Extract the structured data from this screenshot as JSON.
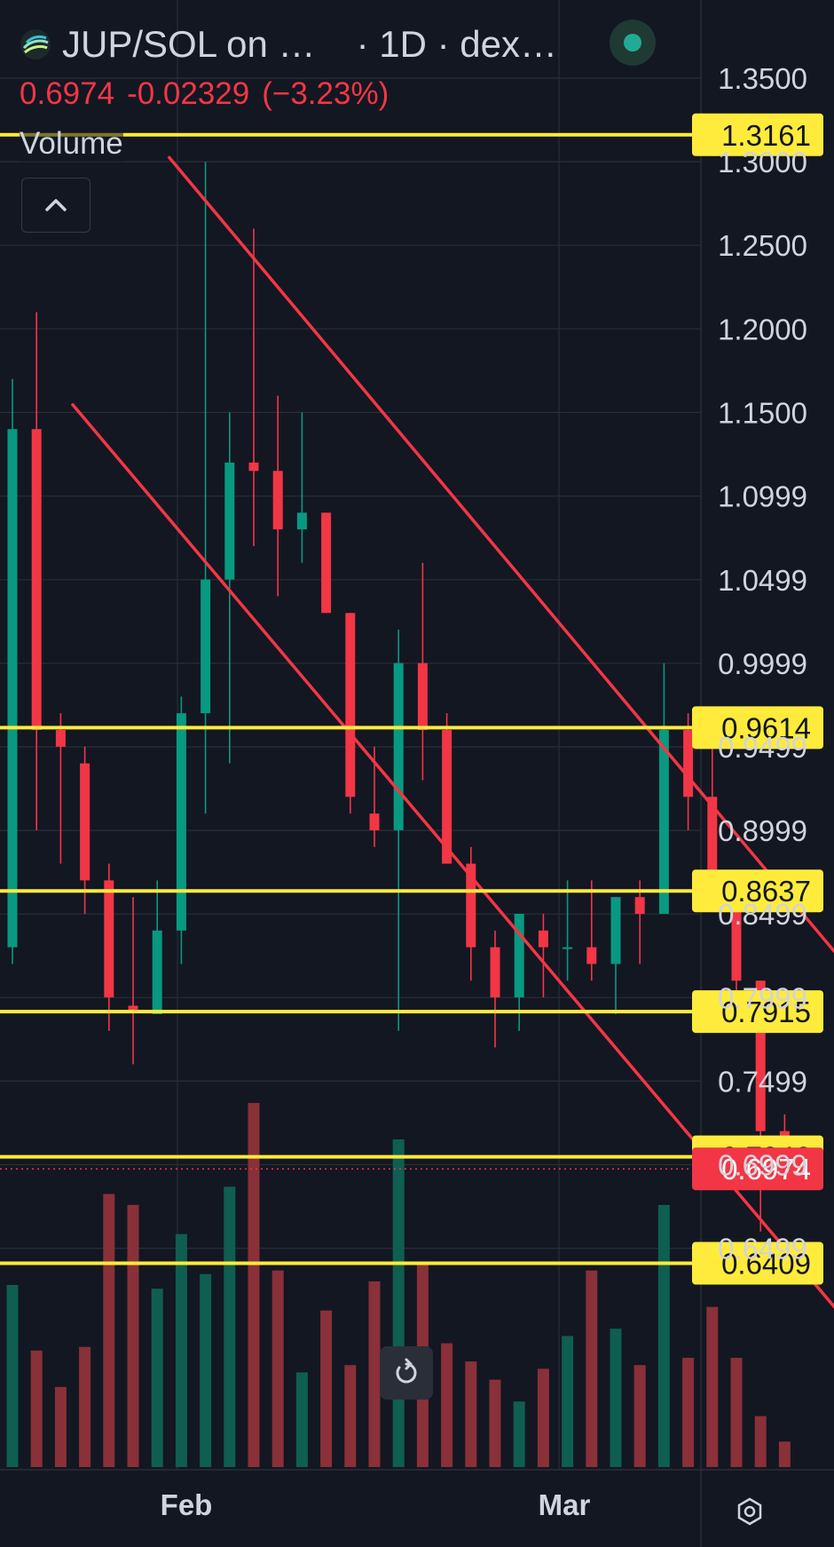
{
  "header": {
    "symbol": "JUP/SOL on …",
    "interval_exchange": "· 1D · dex…",
    "last_price": "0.6974",
    "change": "-0.02329",
    "change_pct": "(−3.23%)",
    "volume_label": "Volume"
  },
  "icons": {
    "logo": "jupiter-logo-icon",
    "live": "market-live-dot-icon",
    "collapse": "chevron-up-icon",
    "reset": "reset-chart-icon",
    "watermark": "watermark-logo-icon"
  },
  "colors": {
    "background": "#131722",
    "up": "#089981",
    "down": "#f23645",
    "hline": "#ffeb3b",
    "trendline": "#f23645",
    "axis_text": "#d1d4dc",
    "grid": "#2a2e39"
  },
  "chart_data": {
    "type": "candlestick",
    "x_ticks": [
      "Feb",
      "Mar"
    ],
    "y_ticks": [
      "1.3500",
      "1.3000",
      "1.2500",
      "1.2000",
      "1.1500",
      "1.0999",
      "1.0499",
      "0.9999",
      "0.9499",
      "0.8999",
      "0.8499",
      "0.7999",
      "0.7499",
      "0.6999",
      "0.6499"
    ],
    "ylim": [
      0.585,
      1.395
    ],
    "horizontal_levels": [
      {
        "label": "1.3161",
        "value": 1.3161
      },
      {
        "label": "0.9614",
        "value": 0.9614
      },
      {
        "label": "0.8637",
        "value": 0.8637
      },
      {
        "label": "0.7915",
        "value": 0.7915
      },
      {
        "label": "0.7046",
        "value": 0.7046
      },
      {
        "label": "0.6409",
        "value": 0.6409
      }
    ],
    "current_price": {
      "label": "0.6974",
      "value": 0.6974
    },
    "trendlines": [
      {
        "p1": {
          "bar": 6.5,
          "price": 1.3025
        },
        "p2": {
          "bar": 38.5,
          "price": 0.7509
        }
      },
      {
        "p1": {
          "bar": 2.5,
          "price": 1.1546
        },
        "p2": {
          "bar": 35.5,
          "price": 0.5901
        }
      }
    ],
    "candles": [
      {
        "o": 0.83,
        "h": 1.17,
        "l": 0.82,
        "c": 1.14
      },
      {
        "o": 1.14,
        "h": 1.21,
        "l": 0.9,
        "c": 0.96
      },
      {
        "o": 0.96,
        "h": 0.97,
        "l": 0.88,
        "c": 0.95
      },
      {
        "o": 0.94,
        "h": 0.95,
        "l": 0.85,
        "c": 0.87
      },
      {
        "o": 0.87,
        "h": 0.88,
        "l": 0.78,
        "c": 0.8
      },
      {
        "o": 0.795,
        "h": 0.86,
        "l": 0.76,
        "c": 0.792
      },
      {
        "o": 0.79,
        "h": 0.87,
        "l": 0.79,
        "c": 0.84
      },
      {
        "o": 0.84,
        "h": 0.98,
        "l": 0.82,
        "c": 0.97
      },
      {
        "o": 0.97,
        "h": 1.3,
        "l": 0.91,
        "c": 1.05
      },
      {
        "o": 1.05,
        "h": 1.15,
        "l": 0.94,
        "c": 1.12
      },
      {
        "o": 1.12,
        "h": 1.26,
        "l": 1.07,
        "c": 1.115
      },
      {
        "o": 1.115,
        "h": 1.16,
        "l": 1.04,
        "c": 1.08
      },
      {
        "o": 1.08,
        "h": 1.15,
        "l": 1.06,
        "c": 1.09
      },
      {
        "o": 1.09,
        "h": 1.09,
        "l": 1.03,
        "c": 1.03
      },
      {
        "o": 1.03,
        "h": 1.03,
        "l": 0.91,
        "c": 0.92
      },
      {
        "o": 0.91,
        "h": 0.95,
        "l": 0.89,
        "c": 0.9
      },
      {
        "o": 0.9,
        "h": 1.02,
        "l": 0.78,
        "c": 1.0
      },
      {
        "o": 1.0,
        "h": 1.06,
        "l": 0.93,
        "c": 0.96
      },
      {
        "o": 0.96,
        "h": 0.97,
        "l": 0.88,
        "c": 0.88
      },
      {
        "o": 0.88,
        "h": 0.89,
        "l": 0.81,
        "c": 0.83
      },
      {
        "o": 0.83,
        "h": 0.84,
        "l": 0.77,
        "c": 0.8
      },
      {
        "o": 0.8,
        "h": 0.85,
        "l": 0.78,
        "c": 0.85
      },
      {
        "o": 0.84,
        "h": 0.85,
        "l": 0.8,
        "c": 0.83
      },
      {
        "o": 0.83,
        "h": 0.87,
        "l": 0.81,
        "c": 0.83
      },
      {
        "o": 0.83,
        "h": 0.87,
        "l": 0.81,
        "c": 0.82
      },
      {
        "o": 0.82,
        "h": 0.86,
        "l": 0.79,
        "c": 0.86
      },
      {
        "o": 0.86,
        "h": 0.87,
        "l": 0.82,
        "c": 0.85
      },
      {
        "o": 0.85,
        "h": 1.0,
        "l": 0.85,
        "c": 0.96
      },
      {
        "o": 0.96,
        "h": 0.97,
        "l": 0.9,
        "c": 0.92
      },
      {
        "o": 0.92,
        "h": 0.96,
        "l": 0.86,
        "c": 0.87
      },
      {
        "o": 0.87,
        "h": 0.87,
        "l": 0.79,
        "c": 0.81
      },
      {
        "o": 0.81,
        "h": 0.81,
        "l": 0.66,
        "c": 0.72
      },
      {
        "o": 0.72,
        "h": 0.73,
        "l": 0.69,
        "c": 0.6974
      }
    ],
    "volume": [
      0.5,
      0.32,
      0.22,
      0.33,
      0.75,
      0.72,
      0.49,
      0.64,
      0.53,
      0.77,
      1.0,
      0.54,
      0.26,
      0.43,
      0.28,
      0.51,
      0.9,
      0.56,
      0.34,
      0.29,
      0.24,
      0.18,
      0.27,
      0.36,
      0.54,
      0.38,
      0.28,
      0.72,
      0.3,
      0.44,
      0.3,
      0.14,
      0.07
    ]
  }
}
